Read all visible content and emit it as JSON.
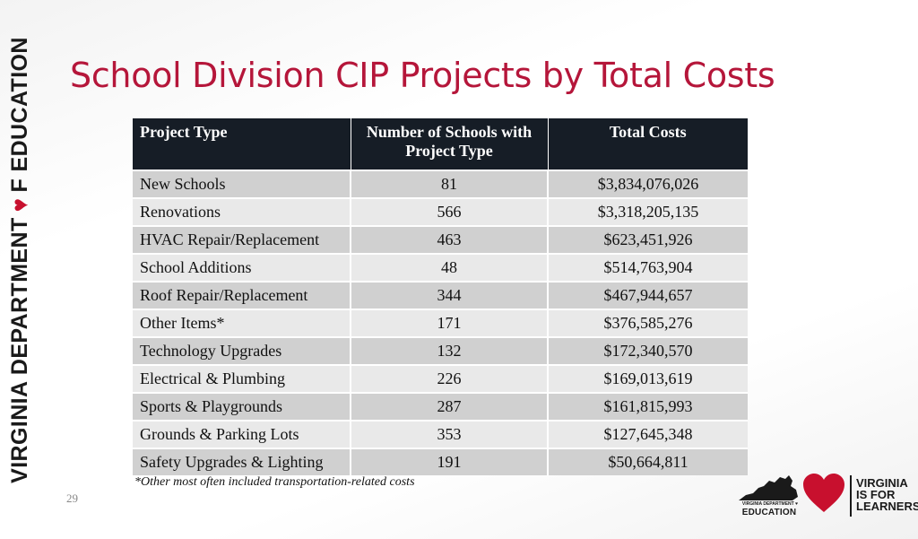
{
  "slide": {
    "title": "School Division CIP Projects by Total Costs",
    "slide_number": "29",
    "footnote": "*Other most often included transportation-related costs",
    "brand_vertical": {
      "part1": "VIRGINIA DEPARTMENT",
      "part2": "F EDUCATION"
    },
    "logos": {
      "doe_small": "VIRGINIA DEPARTMENT ♥",
      "doe_big": "EDUCATION",
      "vifl_line1": "VIRGINIA",
      "vifl_line2": "IS FOR",
      "vifl_line3": "LEARNERS"
    },
    "colors": {
      "title": "#b5163a",
      "header_bg": "#161d26",
      "heart": "#c8102e",
      "row_dark": "#d0d0d0",
      "row_light": "#e9e9e9"
    }
  },
  "table": {
    "headers": {
      "type": "Project Type",
      "count": "Number of Schools with Project Type",
      "cost": "Total Costs"
    },
    "rows": [
      {
        "type": "New Schools",
        "count": "81",
        "cost": "$3,834,076,026"
      },
      {
        "type": "Renovations",
        "count": "566",
        "cost": "$3,318,205,135"
      },
      {
        "type": "HVAC Repair/Replacement",
        "count": "463",
        "cost": "$623,451,926"
      },
      {
        "type": "School Additions",
        "count": "48",
        "cost": "$514,763,904"
      },
      {
        "type": "Roof Repair/Replacement",
        "count": "344",
        "cost": "$467,944,657"
      },
      {
        "type": "Other Items*",
        "count": "171",
        "cost": "$376,585,276"
      },
      {
        "type": "Technology Upgrades",
        "count": "132",
        "cost": "$172,340,570"
      },
      {
        "type": "Electrical & Plumbing",
        "count": "226",
        "cost": "$169,013,619"
      },
      {
        "type": "Sports & Playgrounds",
        "count": "287",
        "cost": "$161,815,993"
      },
      {
        "type": "Grounds & Parking Lots",
        "count": "353",
        "cost": "$127,645,348"
      },
      {
        "type": "Safety Upgrades & Lighting",
        "count": "191",
        "cost": "$50,664,811"
      }
    ]
  }
}
